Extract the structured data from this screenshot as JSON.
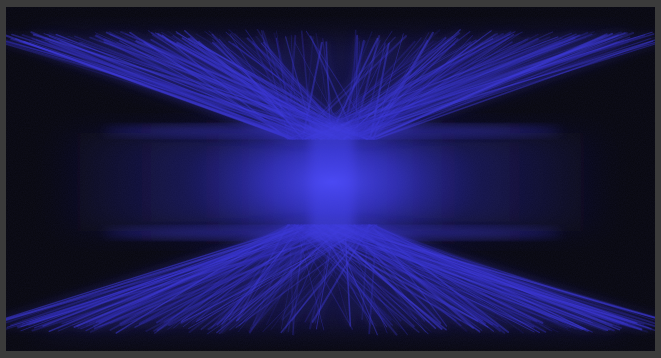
{
  "image": {
    "subject": "blue-light-ray-burst",
    "colors": {
      "frame": "#3b3b3b",
      "background": "#000000",
      "glow_core": "#4a48ff",
      "ray": "#3a36e0",
      "ray_faint": "#2a26b0"
    }
  }
}
